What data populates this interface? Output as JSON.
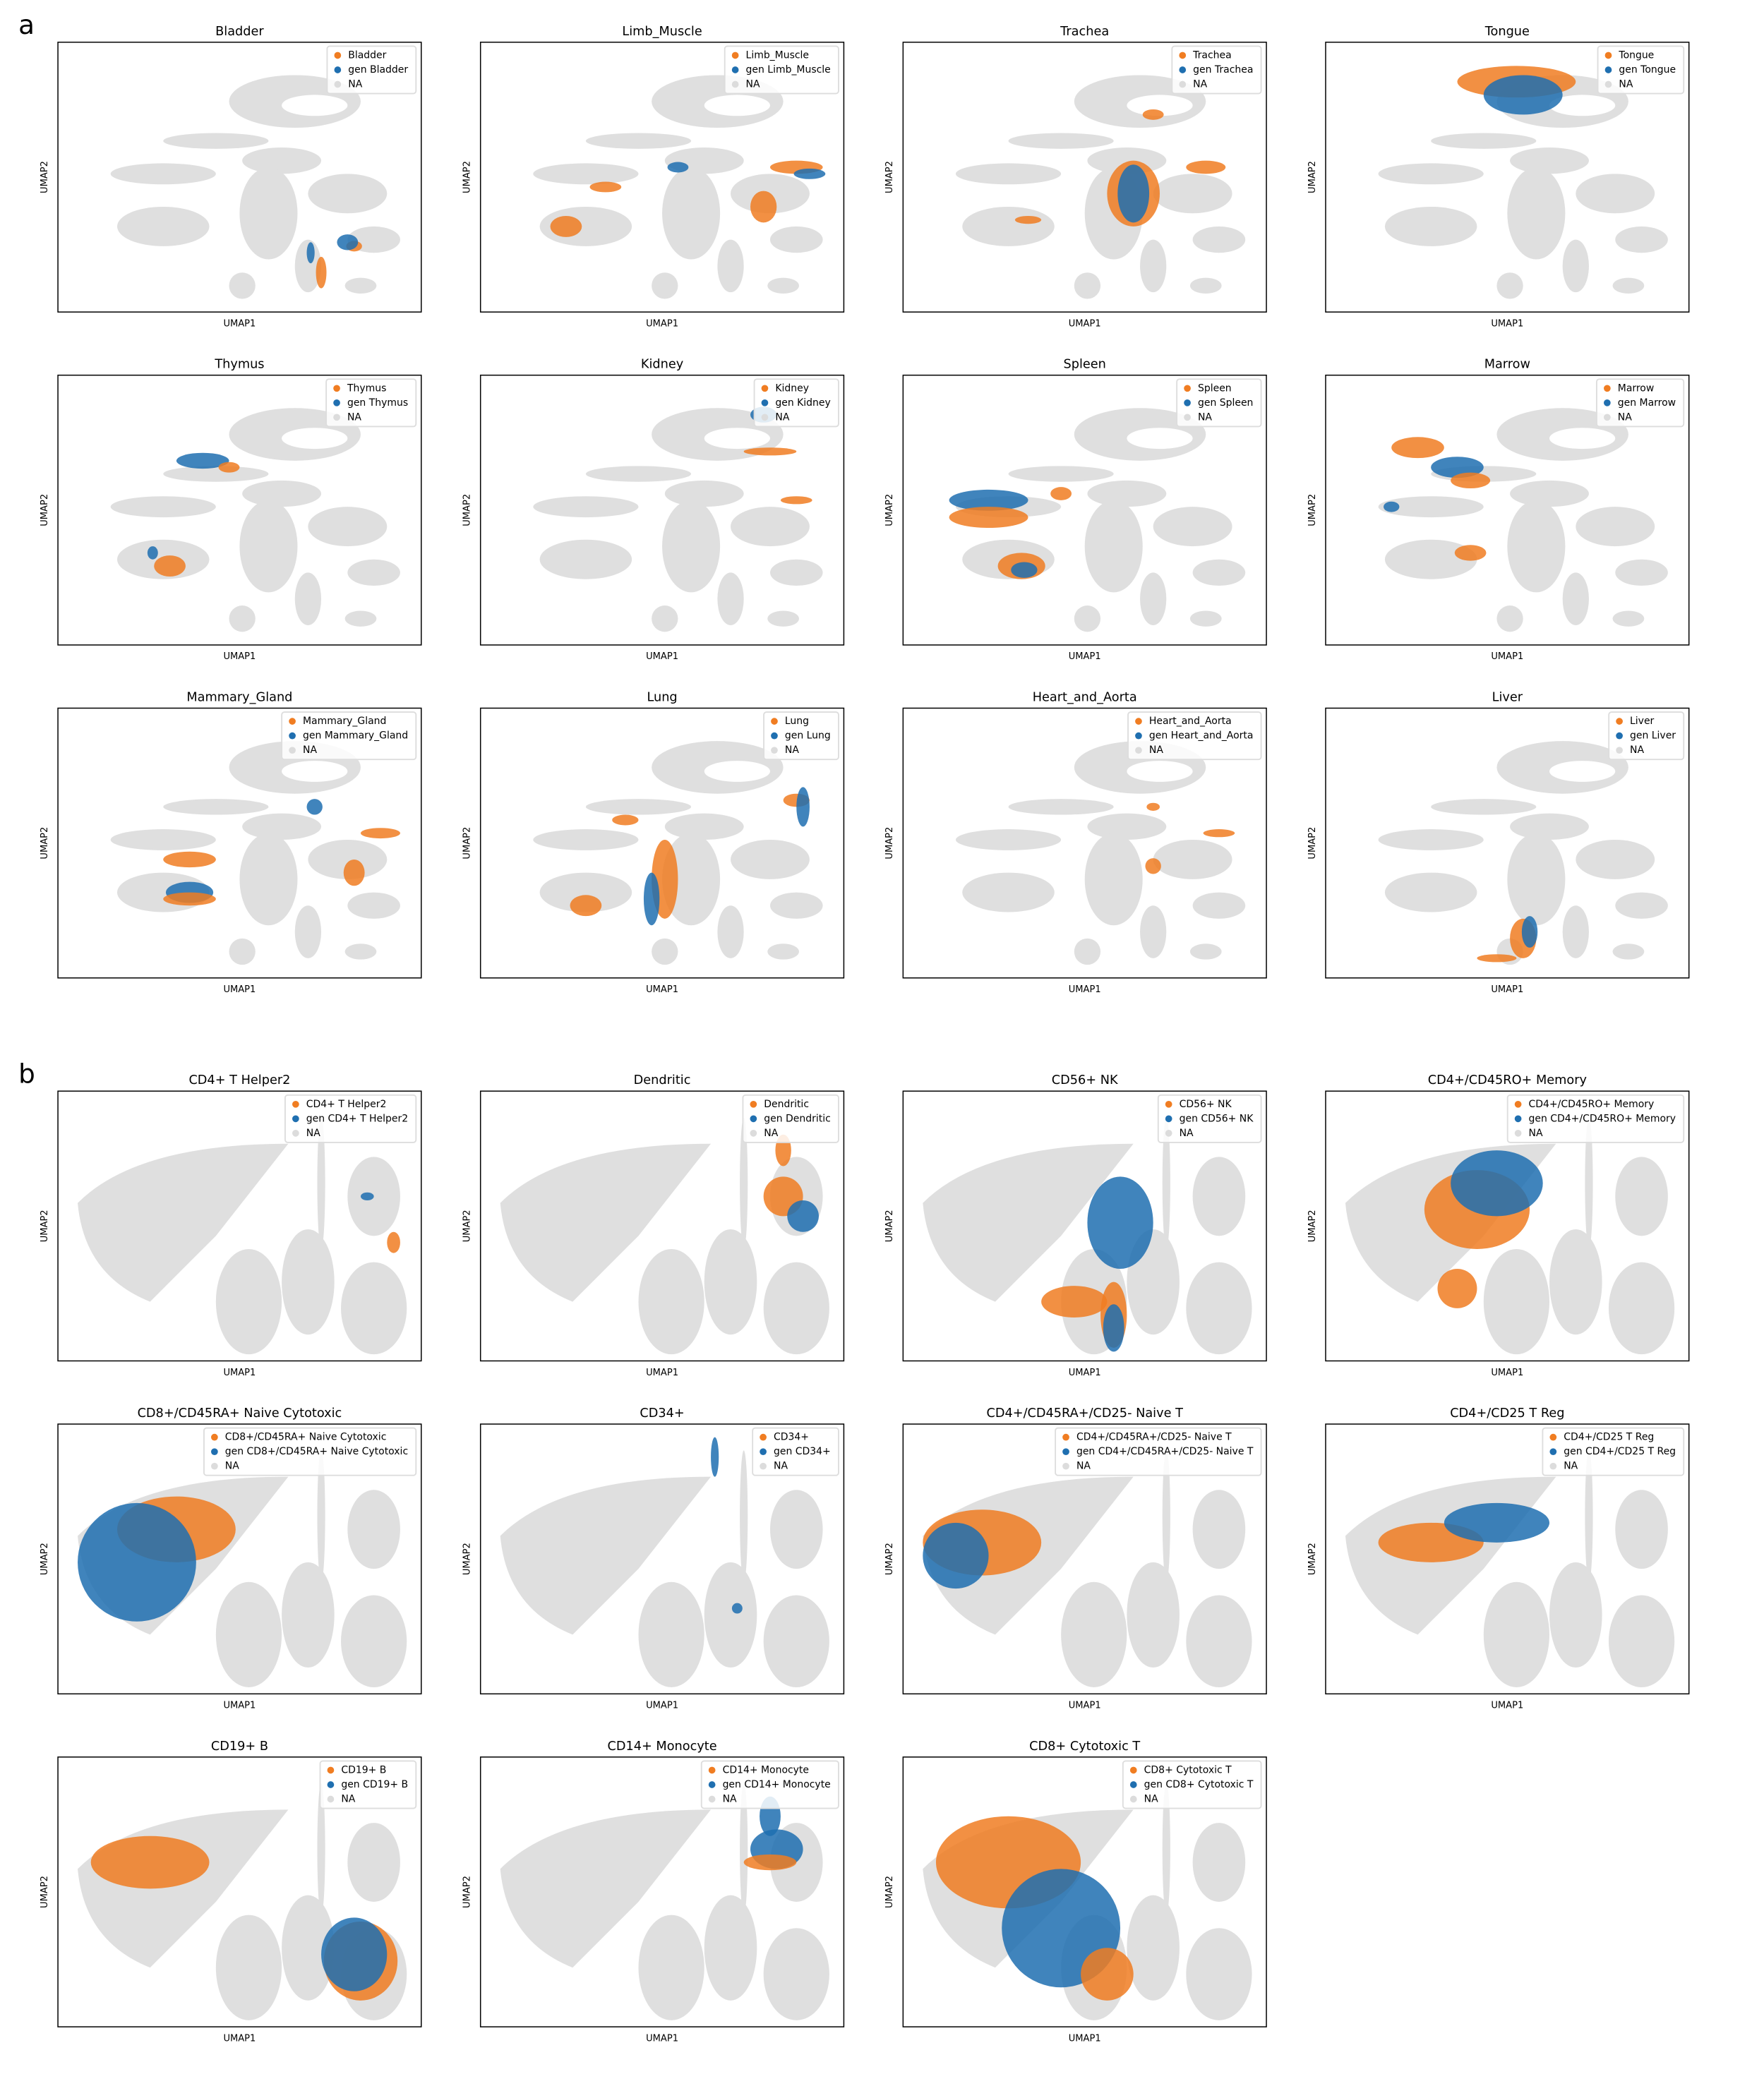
{
  "legend_colors": [
    "#f07d22",
    "#1f6fb0",
    "#dcdcdc"
  ],
  "panels": [
    {
      "label": "a",
      "plots": [
        {
          "title": "Bladder",
          "legend": [
            "Bladder",
            "gen Bladder",
            "NA"
          ],
          "xlabel": "UMAP1",
          "ylabel": "UMAP2"
        },
        {
          "title": "Limb_Muscle",
          "legend": [
            "Limb_Muscle",
            "gen Limb_Muscle",
            "NA"
          ],
          "xlabel": "UMAP1",
          "ylabel": "UMAP2"
        },
        {
          "title": "Trachea",
          "legend": [
            "Trachea",
            "gen Trachea",
            "NA"
          ],
          "xlabel": "UMAP1",
          "ylabel": "UMAP2"
        },
        {
          "title": "Tongue",
          "legend": [
            "Tongue",
            "gen Tongue",
            "NA"
          ],
          "xlabel": "UMAP1",
          "ylabel": "UMAP2"
        },
        {
          "title": "Thymus",
          "legend": [
            "Thymus",
            "gen Thymus",
            "NA"
          ],
          "xlabel": "UMAP1",
          "ylabel": "UMAP2"
        },
        {
          "title": "Kidney",
          "legend": [
            "Kidney",
            "gen Kidney",
            "NA"
          ],
          "xlabel": "UMAP1",
          "ylabel": "UMAP2"
        },
        {
          "title": "Spleen",
          "legend": [
            "Spleen",
            "gen Spleen",
            "NA"
          ],
          "xlabel": "UMAP1",
          "ylabel": "UMAP2"
        },
        {
          "title": "Marrow",
          "legend": [
            "Marrow",
            "gen Marrow",
            "NA"
          ],
          "xlabel": "UMAP1",
          "ylabel": "UMAP2"
        },
        {
          "title": "Mammary_Gland",
          "legend": [
            "Mammary_Gland",
            "gen Mammary_Gland",
            "NA"
          ],
          "xlabel": "UMAP1",
          "ylabel": "UMAP2"
        },
        {
          "title": "Lung",
          "legend": [
            "Lung",
            "gen Lung",
            "NA"
          ],
          "xlabel": "UMAP1",
          "ylabel": "UMAP2"
        },
        {
          "title": "Heart_and_Aorta",
          "legend": [
            "Heart_and_Aorta",
            "gen Heart_and_Aorta",
            "NA"
          ],
          "xlabel": "UMAP1",
          "ylabel": "UMAP2"
        },
        {
          "title": "Liver",
          "legend": [
            "Liver",
            "gen Liver",
            "NA"
          ],
          "xlabel": "UMAP1",
          "ylabel": "UMAP2"
        }
      ]
    },
    {
      "label": "b",
      "plots": [
        {
          "title": "CD4+ T Helper2",
          "legend": [
            "CD4+ T Helper2",
            "gen CD4+ T Helper2",
            "NA"
          ],
          "xlabel": "UMAP1",
          "ylabel": "UMAP2"
        },
        {
          "title": "Dendritic",
          "legend": [
            "Dendritic",
            "gen Dendritic",
            "NA"
          ],
          "xlabel": "UMAP1",
          "ylabel": "UMAP2"
        },
        {
          "title": "CD56+ NK",
          "legend": [
            "CD56+ NK",
            "gen CD56+ NK",
            "NA"
          ],
          "xlabel": "UMAP1",
          "ylabel": "UMAP2"
        },
        {
          "title": "CD4+/CD45RO+ Memory",
          "legend": [
            "CD4+/CD45RO+ Memory",
            "gen CD4+/CD45RO+ Memory",
            "NA"
          ],
          "xlabel": "UMAP1",
          "ylabel": "UMAP2"
        },
        {
          "title": "CD8+/CD45RA+ Naive Cytotoxic",
          "legend": [
            "CD8+/CD45RA+ Naive Cytotoxic",
            "gen CD8+/CD45RA+ Naive Cytotoxic",
            "NA"
          ],
          "xlabel": "UMAP1",
          "ylabel": "UMAP2"
        },
        {
          "title": "CD34+",
          "legend": [
            "CD34+",
            "gen CD34+",
            "NA"
          ],
          "xlabel": "UMAP1",
          "ylabel": "UMAP2"
        },
        {
          "title": "CD4+/CD45RA+/CD25- Naive T",
          "legend": [
            "CD4+/CD45RA+/CD25- Naive T",
            "gen CD4+/CD45RA+/CD25- Naive T",
            "NA"
          ],
          "xlabel": "UMAP1",
          "ylabel": "UMAP2"
        },
        {
          "title": "CD4+/CD25 T Reg",
          "legend": [
            "CD4+/CD25 T Reg",
            "gen CD4+/CD25 T Reg",
            "NA"
          ],
          "xlabel": "UMAP1",
          "ylabel": "UMAP2"
        },
        {
          "title": "CD19+ B",
          "legend": [
            "CD19+ B",
            "gen CD19+ B",
            "NA"
          ],
          "xlabel": "UMAP1",
          "ylabel": "UMAP2"
        },
        {
          "title": "CD14+ Monocyte",
          "legend": [
            "CD14+ Monocyte",
            "gen CD14+ Monocyte",
            "NA"
          ],
          "xlabel": "UMAP1",
          "ylabel": "UMAP2"
        },
        {
          "title": "CD8+ Cytotoxic T",
          "legend": [
            "CD8+ Cytotoxic T",
            "gen CD8+ Cytotoxic T",
            "NA"
          ],
          "xlabel": "UMAP1",
          "ylabel": "UMAP2"
        }
      ]
    }
  ]
}
